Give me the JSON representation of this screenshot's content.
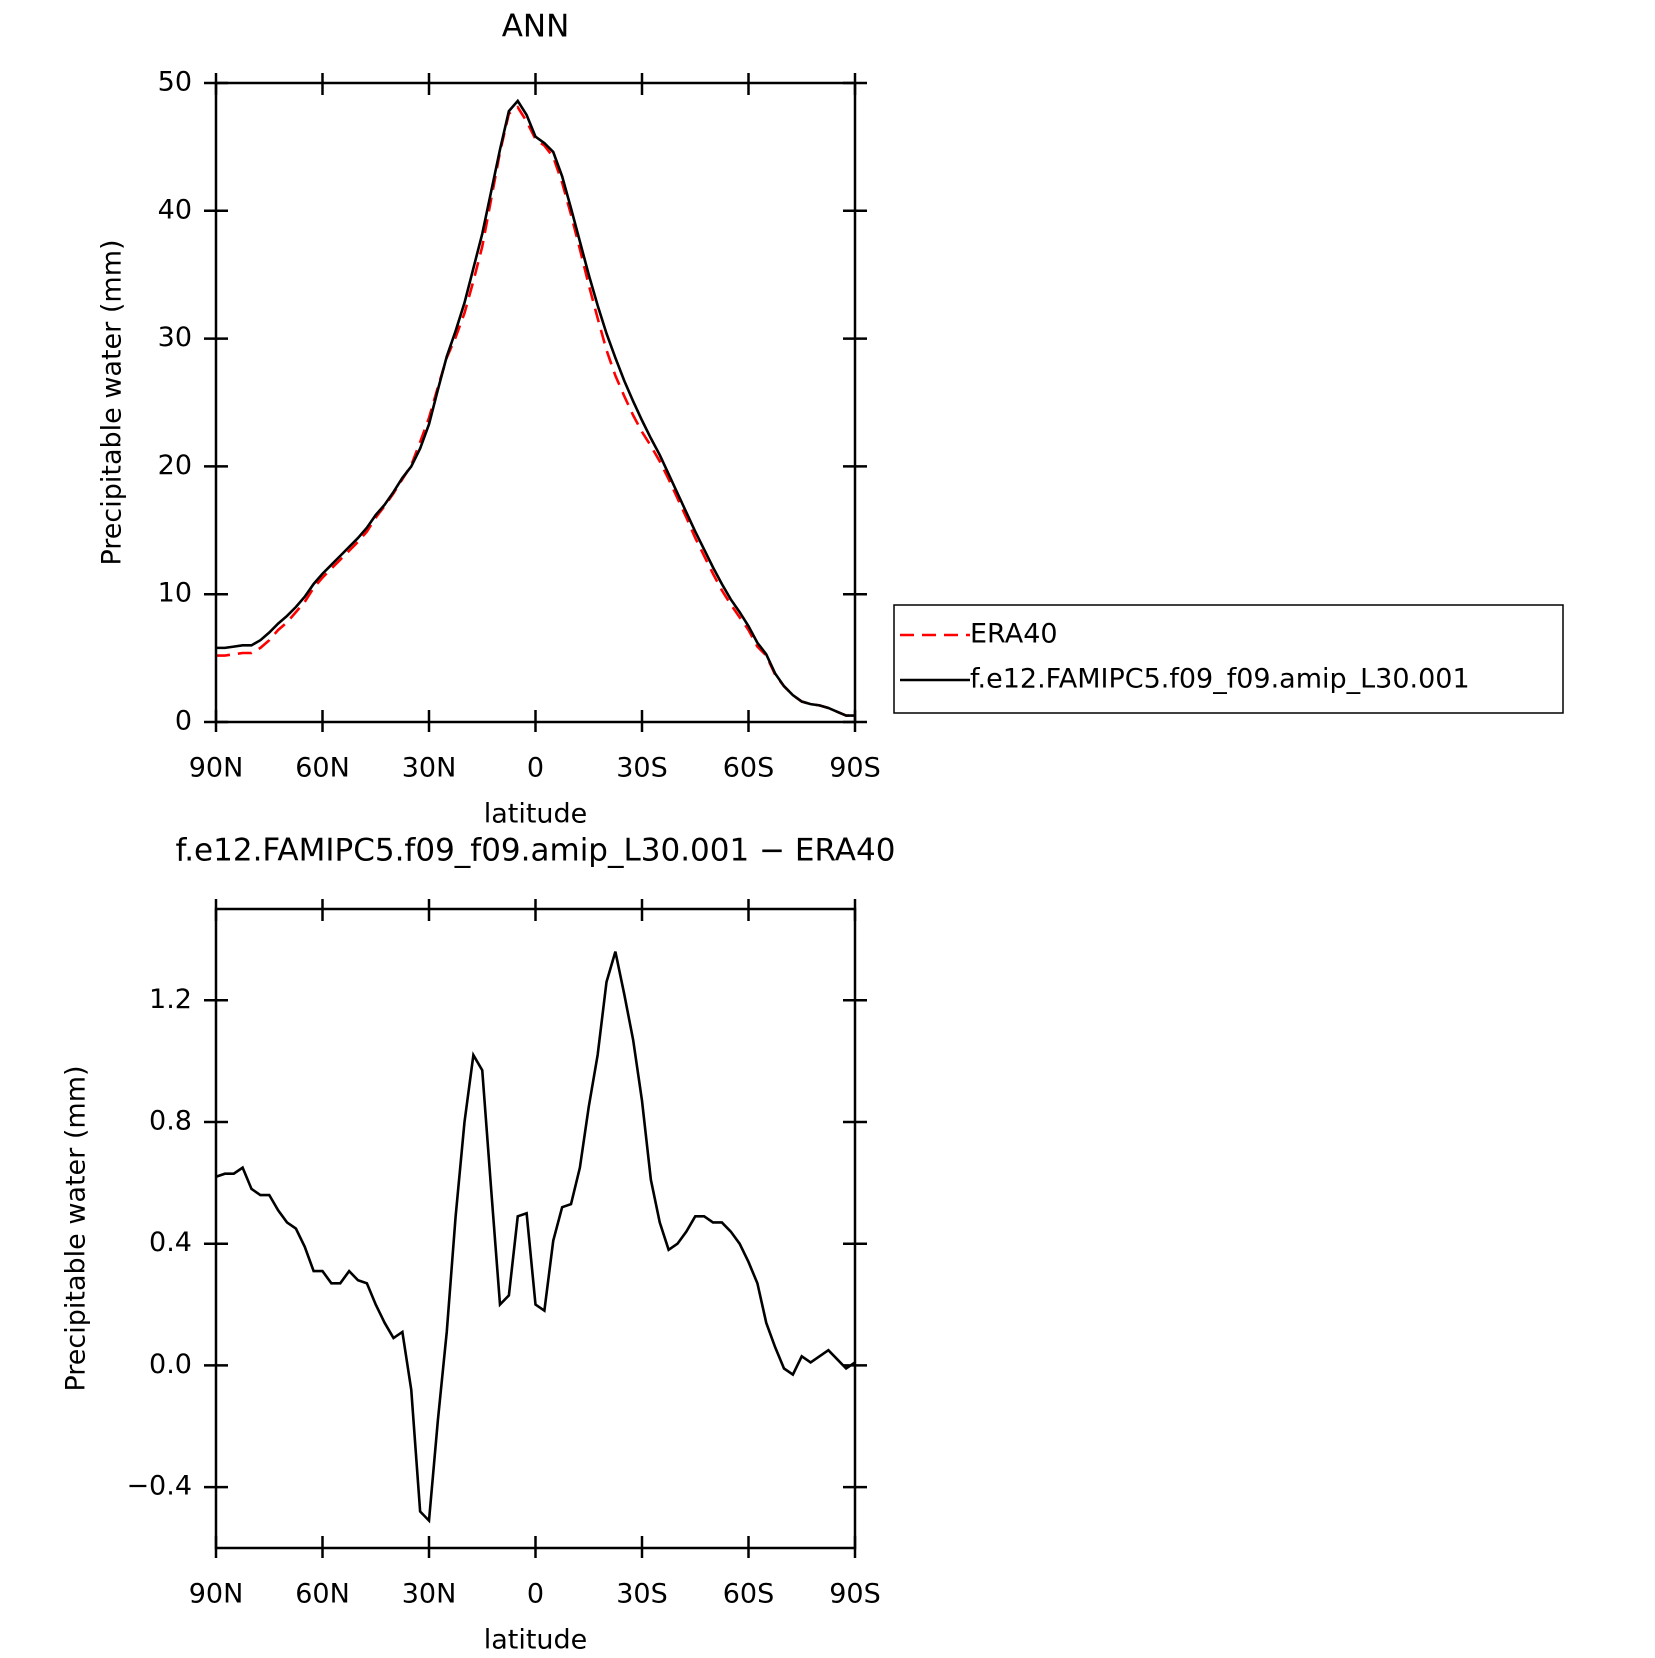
{
  "chart_data": [
    {
      "type": "line",
      "title": "ANN",
      "xlabel": "latitude",
      "ylabel": "Precipitable water (mm)",
      "xlim": [
        90,
        -90
      ],
      "xticks": [
        {
          "value": 90,
          "label": "90N"
        },
        {
          "value": 60,
          "label": "60N"
        },
        {
          "value": 30,
          "label": "30N"
        },
        0,
        {
          "value": -30,
          "label": "30S"
        },
        {
          "value": -60,
          "label": "60S"
        },
        {
          "value": -90,
          "label": "90S"
        }
      ],
      "ylim": [
        0,
        50
      ],
      "yticks": [
        0,
        10,
        20,
        30,
        40,
        50
      ],
      "legend": "right",
      "x": [
        90,
        87.5,
        85,
        82.5,
        80,
        77.5,
        75,
        72.5,
        70,
        67.5,
        65,
        62.5,
        60,
        57.5,
        55,
        52.5,
        50,
        47.5,
        45,
        42.5,
        40,
        37.5,
        35,
        32.5,
        30,
        27.5,
        25,
        22.5,
        20,
        17.5,
        15,
        12.5,
        10,
        7.5,
        5,
        2.5,
        0,
        -2.5,
        -5,
        -7.5,
        -10,
        -12.5,
        -15,
        -17.5,
        -20,
        -22.5,
        -25,
        -27.5,
        -30,
        -32.5,
        -35,
        -37.5,
        -40,
        -42.5,
        -45,
        -47.5,
        -50,
        -52.5,
        -55,
        -57.5,
        -60,
        -62.5,
        -65,
        -67.5,
        -70,
        -72.5,
        -75,
        -77.5,
        -80,
        -82.5,
        -85,
        -87.5,
        -90
      ],
      "series": [
        {
          "name": "ERA40",
          "color": "#ff0000",
          "line_style": "dashed",
          "values": [
            5.2,
            5.2,
            5.3,
            5.4,
            5.4,
            5.8,
            6.4,
            7.2,
            7.8,
            8.6,
            9.4,
            10.5,
            11.3,
            12.0,
            12.7,
            13.4,
            14.1,
            14.9,
            16.0,
            16.9,
            17.9,
            19.0,
            20.1,
            21.9,
            23.8,
            26.2,
            28.5,
            30.1,
            32.0,
            34.5,
            37.2,
            40.9,
            44.6,
            47.6,
            48.1,
            47.0,
            45.6,
            45.1,
            44.2,
            42.2,
            39.7,
            37.0,
            34.2,
            31.6,
            29.1,
            27.1,
            25.5,
            24.0,
            22.7,
            21.6,
            20.4,
            19.0,
            17.5,
            16.0,
            14.4,
            13.0,
            11.6,
            10.3,
            9.2,
            8.2,
            7.2,
            5.9,
            5.2,
            3.7,
            2.8,
            2.1,
            1.6,
            1.4,
            1.3,
            1.1,
            0.8,
            0.5,
            0.5
          ]
        },
        {
          "name": "f.e12.FAMIPC5.f09_f09.amip_L30.001",
          "color": "#000000",
          "line_style": "solid",
          "values": [
            5.8,
            5.8,
            5.9,
            6.0,
            6.0,
            6.4,
            7.0,
            7.7,
            8.3,
            9.0,
            9.8,
            10.8,
            11.6,
            12.3,
            13.0,
            13.7,
            14.4,
            15.2,
            16.2,
            17.0,
            18.0,
            19.1,
            20.0,
            21.4,
            23.3,
            26.0,
            28.6,
            30.6,
            32.8,
            35.5,
            38.2,
            41.5,
            44.8,
            47.8,
            48.6,
            47.5,
            45.8,
            45.3,
            44.6,
            42.7,
            40.2,
            37.6,
            35.0,
            32.6,
            30.4,
            28.5,
            26.7,
            25.1,
            23.6,
            22.2,
            20.9,
            19.4,
            17.9,
            16.4,
            14.9,
            13.5,
            12.1,
            10.8,
            9.6,
            8.6,
            7.5,
            6.2,
            5.3,
            3.8,
            2.8,
            2.1,
            1.6,
            1.4,
            1.3,
            1.1,
            0.8,
            0.5,
            0.5
          ]
        }
      ]
    },
    {
      "type": "line",
      "title": "f.e12.FAMIPC5.f09_f09.amip_L30.001 − ERA40",
      "xlabel": "latitude",
      "ylabel": "Precipitable water (mm)",
      "xlim": [
        90,
        -90
      ],
      "xticks": [
        {
          "value": 90,
          "label": "90N"
        },
        {
          "value": 60,
          "label": "60N"
        },
        {
          "value": 30,
          "label": "30N"
        },
        0,
        {
          "value": -30,
          "label": "30S"
        },
        {
          "value": -60,
          "label": "60S"
        },
        {
          "value": -90,
          "label": "90S"
        }
      ],
      "ylim": [
        -0.6,
        1.5
      ],
      "yticks": [
        {
          "value": -0.4,
          "label": "−0.4"
        },
        {
          "value": 0,
          "label": "0.0"
        },
        0.4,
        0.8,
        1.2
      ],
      "x": [
        90,
        87.5,
        85,
        82.5,
        80,
        77.5,
        75,
        72.5,
        70,
        67.5,
        65,
        62.5,
        60,
        57.5,
        55,
        52.5,
        50,
        47.5,
        45,
        42.5,
        40,
        37.5,
        35,
        32.5,
        30,
        27.5,
        25,
        22.5,
        20,
        17.5,
        15,
        12.5,
        10,
        7.5,
        5,
        2.5,
        0,
        -2.5,
        -5,
        -7.5,
        -10,
        -12.5,
        -15,
        -17.5,
        -20,
        -22.5,
        -25,
        -27.5,
        -30,
        -32.5,
        -35,
        -37.5,
        -40,
        -42.5,
        -45,
        -47.5,
        -50,
        -52.5,
        -55,
        -57.5,
        -60,
        -62.5,
        -65,
        -67.5,
        -70,
        -72.5,
        -75,
        -77.5,
        -80,
        -82.5,
        -85,
        -87.5,
        -90
      ],
      "series": [
        {
          "color": "#000000",
          "line_style": "solid",
          "values": [
            0.62,
            0.63,
            0.63,
            0.65,
            0.58,
            0.56,
            0.56,
            0.51,
            0.47,
            0.45,
            0.39,
            0.31,
            0.31,
            0.27,
            0.27,
            0.31,
            0.28,
            0.27,
            0.2,
            0.14,
            0.09,
            0.11,
            -0.08,
            -0.48,
            -0.51,
            -0.18,
            0.11,
            0.49,
            0.8,
            1.02,
            0.97,
            0.58,
            0.2,
            0.23,
            0.49,
            0.5,
            0.2,
            0.18,
            0.41,
            0.52,
            0.53,
            0.65,
            0.85,
            1.02,
            1.26,
            1.36,
            1.22,
            1.07,
            0.87,
            0.61,
            0.47,
            0.38,
            0.4,
            0.44,
            0.49,
            0.49,
            0.47,
            0.47,
            0.44,
            0.4,
            0.34,
            0.27,
            0.14,
            0.06,
            -0.01,
            -0.03,
            0.03,
            0.01,
            0.03,
            0.05,
            0.02,
            -0.01,
            0.01
          ]
        }
      ]
    }
  ]
}
